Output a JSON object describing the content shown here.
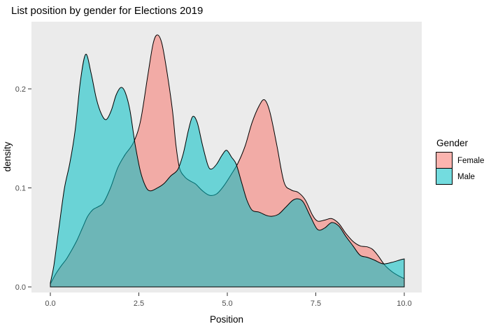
{
  "chart_data": {
    "type": "area",
    "title": "List position by gender for Elections 2019",
    "xlabel": "Position",
    "ylabel": "density",
    "xlim": [
      0,
      10
    ],
    "ylim": [
      0,
      0.268
    ],
    "grid": false,
    "panel_background": "#EBEBEB",
    "tick_color": "#333333",
    "tick_label_color": "#4D4D4D",
    "text_color": "#000000",
    "x_ticks": [
      0.0,
      2.5,
      5.0,
      7.5,
      10.0
    ],
    "x_tick_labels": [
      "0.0",
      "2.5",
      "5.0",
      "7.5",
      "10.0"
    ],
    "y_ticks": [
      0.0,
      0.1,
      0.2
    ],
    "y_tick_labels": [
      "0.0",
      "0.1",
      "0.2"
    ],
    "legend": {
      "title": "Gender",
      "position": "right"
    },
    "series": [
      {
        "name": "Female",
        "color": "#F8766D",
        "fill_opacity": 0.55,
        "outline_color": "#000000",
        "points": [
          [
            0,
            0.003
          ],
          [
            0.15,
            0.013
          ],
          [
            0.3,
            0.021
          ],
          [
            0.45,
            0.028
          ],
          [
            0.6,
            0.037
          ],
          [
            0.75,
            0.047
          ],
          [
            0.9,
            0.059
          ],
          [
            1.05,
            0.071
          ],
          [
            1.2,
            0.078
          ],
          [
            1.35,
            0.081
          ],
          [
            1.5,
            0.085
          ],
          [
            1.7,
            0.1
          ],
          [
            1.9,
            0.12
          ],
          [
            2.1,
            0.133
          ],
          [
            2.35,
            0.146
          ],
          [
            2.55,
            0.168
          ],
          [
            2.75,
            0.213
          ],
          [
            2.9,
            0.245
          ],
          [
            3.02,
            0.2545
          ],
          [
            3.15,
            0.246
          ],
          [
            3.3,
            0.216
          ],
          [
            3.45,
            0.178
          ],
          [
            3.55,
            0.143
          ],
          [
            3.65,
            0.12
          ],
          [
            3.8,
            0.111
          ],
          [
            3.95,
            0.107
          ],
          [
            4.1,
            0.104
          ],
          [
            4.3,
            0.097
          ],
          [
            4.5,
            0.0925
          ],
          [
            4.7,
            0.094
          ],
          [
            4.9,
            0.102
          ],
          [
            5.1,
            0.113
          ],
          [
            5.3,
            0.125
          ],
          [
            5.5,
            0.142
          ],
          [
            5.7,
            0.166
          ],
          [
            5.9,
            0.183
          ],
          [
            6.05,
            0.189
          ],
          [
            6.2,
            0.177
          ],
          [
            6.4,
            0.143
          ],
          [
            6.6,
            0.106
          ],
          [
            6.8,
            0.098
          ],
          [
            7.0,
            0.0955
          ],
          [
            7.2,
            0.088
          ],
          [
            7.4,
            0.073
          ],
          [
            7.55,
            0.0665
          ],
          [
            7.75,
            0.0675
          ],
          [
            7.95,
            0.069
          ],
          [
            8.15,
            0.064
          ],
          [
            8.35,
            0.054
          ],
          [
            8.55,
            0.046
          ],
          [
            8.75,
            0.0415
          ],
          [
            8.95,
            0.0405
          ],
          [
            9.1,
            0.038
          ],
          [
            9.25,
            0.032
          ],
          [
            9.45,
            0.022
          ],
          [
            9.65,
            0.0155
          ],
          [
            9.85,
            0.011
          ],
          [
            10,
            0.0085
          ]
        ]
      },
      {
        "name": "Male",
        "color": "#00BFC4",
        "fill_opacity": 0.55,
        "outline_color": "#000000",
        "points": [
          [
            0,
            0.004
          ],
          [
            0.1,
            0.022
          ],
          [
            0.25,
            0.062
          ],
          [
            0.4,
            0.1
          ],
          [
            0.55,
            0.125
          ],
          [
            0.7,
            0.158
          ],
          [
            0.85,
            0.208
          ],
          [
            1.0,
            0.235
          ],
          [
            1.15,
            0.216
          ],
          [
            1.3,
            0.19
          ],
          [
            1.45,
            0.174
          ],
          [
            1.58,
            0.169
          ],
          [
            1.72,
            0.178
          ],
          [
            1.86,
            0.194
          ],
          [
            2.0,
            0.2015
          ],
          [
            2.12,
            0.196
          ],
          [
            2.25,
            0.178
          ],
          [
            2.4,
            0.143
          ],
          [
            2.55,
            0.116
          ],
          [
            2.7,
            0.101
          ],
          [
            2.82,
            0.097
          ],
          [
            3.0,
            0.0995
          ],
          [
            3.2,
            0.104
          ],
          [
            3.4,
            0.112
          ],
          [
            3.6,
            0.1185
          ],
          [
            3.75,
            0.134
          ],
          [
            3.9,
            0.158
          ],
          [
            4.02,
            0.172
          ],
          [
            4.15,
            0.166
          ],
          [
            4.3,
            0.143
          ],
          [
            4.45,
            0.123
          ],
          [
            4.55,
            0.119
          ],
          [
            4.7,
            0.124
          ],
          [
            4.85,
            0.133
          ],
          [
            4.98,
            0.138
          ],
          [
            5.12,
            0.131
          ],
          [
            5.25,
            0.124
          ],
          [
            5.4,
            0.106
          ],
          [
            5.55,
            0.088
          ],
          [
            5.7,
            0.0775
          ],
          [
            5.9,
            0.0755
          ],
          [
            6.1,
            0.0722
          ],
          [
            6.25,
            0.0713
          ],
          [
            6.45,
            0.0735
          ],
          [
            6.65,
            0.0805
          ],
          [
            6.85,
            0.0875
          ],
          [
            7.0,
            0.089
          ],
          [
            7.15,
            0.0855
          ],
          [
            7.35,
            0.071
          ],
          [
            7.55,
            0.058
          ],
          [
            7.75,
            0.0595
          ],
          [
            7.95,
            0.065
          ],
          [
            8.15,
            0.0615
          ],
          [
            8.35,
            0.051
          ],
          [
            8.55,
            0.0415
          ],
          [
            8.75,
            0.032
          ],
          [
            8.95,
            0.03
          ],
          [
            9.15,
            0.0272
          ],
          [
            9.4,
            0.0233
          ],
          [
            9.65,
            0.0248
          ],
          [
            9.9,
            0.0275
          ],
          [
            10,
            0.0283
          ]
        ]
      }
    ]
  }
}
